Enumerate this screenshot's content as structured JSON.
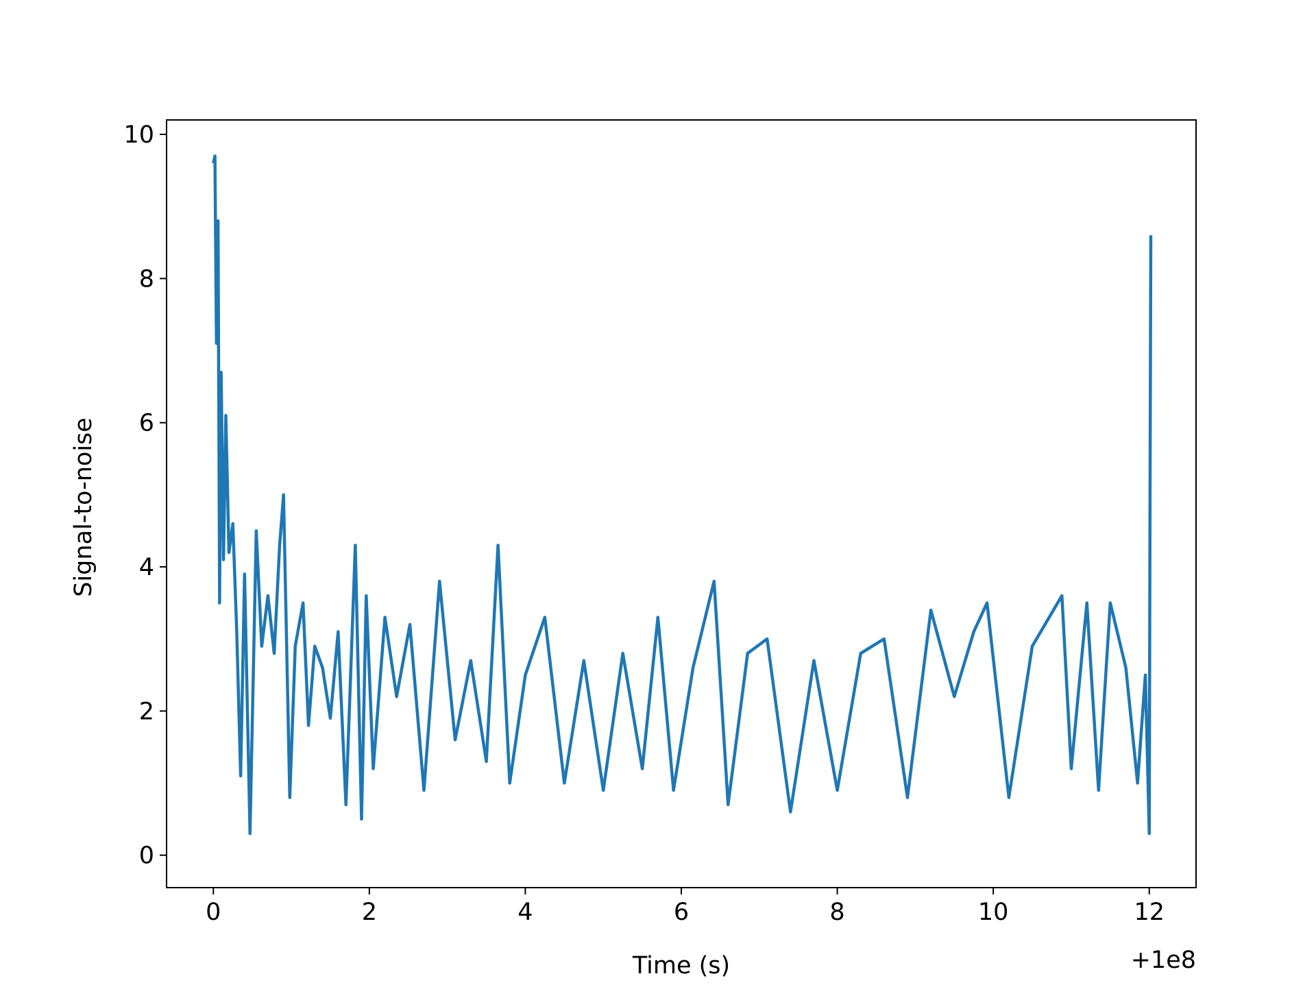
{
  "chart_data": {
    "type": "line",
    "title": "",
    "xlabel": "Time (s)",
    "ylabel": "Signal-to-noise",
    "x_offset_label": "+1e8",
    "xlim": [
      -0.6,
      12.6
    ],
    "ylim": [
      -0.45,
      10.2
    ],
    "xticks": [
      0,
      2,
      4,
      6,
      8,
      10,
      12
    ],
    "yticks": [
      0,
      2,
      4,
      6,
      8,
      10
    ],
    "xtick_labels": [
      "0",
      "2",
      "4",
      "6",
      "8",
      "10",
      "12"
    ],
    "ytick_labels": [
      "0",
      "2",
      "4",
      "6",
      "8",
      "10"
    ],
    "grid": false,
    "legend": "none",
    "line_color": "#1f77b4",
    "series": [
      {
        "x": [
          0.0,
          0.02,
          0.04,
          0.06,
          0.08,
          0.1,
          0.13,
          0.16,
          0.2,
          0.25,
          0.3,
          0.35,
          0.4,
          0.47,
          0.55,
          0.62,
          0.7,
          0.78,
          0.85,
          0.9,
          0.98,
          1.05,
          1.15,
          1.22,
          1.3,
          1.4,
          1.5,
          1.6,
          1.7,
          1.82,
          1.9,
          1.96,
          2.05,
          2.2,
          2.35,
          2.52,
          2.7,
          2.9,
          3.1,
          3.3,
          3.5,
          3.65,
          3.8,
          4.0,
          4.25,
          4.5,
          4.75,
          5.0,
          5.25,
          5.5,
          5.7,
          5.9,
          6.15,
          6.42,
          6.6,
          6.85,
          7.1,
          7.4,
          7.7,
          8.0,
          8.3,
          8.6,
          8.9,
          9.2,
          9.5,
          9.75,
          9.92,
          10.2,
          10.5,
          10.88,
          11.0,
          11.2,
          11.35,
          11.5,
          11.7,
          11.85,
          11.95,
          12.0,
          12.01,
          12.02
        ],
        "y": [
          9.6,
          9.7,
          7.1,
          8.8,
          3.5,
          6.7,
          4.1,
          6.1,
          4.2,
          4.6,
          3.1,
          1.1,
          3.9,
          0.3,
          4.5,
          2.9,
          3.6,
          2.8,
          4.3,
          5.0,
          0.8,
          2.9,
          3.5,
          1.8,
          2.9,
          2.6,
          1.9,
          3.1,
          0.7,
          4.3,
          0.5,
          3.6,
          1.2,
          3.3,
          2.2,
          3.2,
          0.9,
          3.8,
          1.6,
          2.7,
          1.3,
          4.3,
          1.0,
          2.5,
          3.3,
          1.0,
          2.7,
          0.9,
          2.8,
          1.2,
          3.3,
          0.9,
          2.6,
          3.8,
          0.7,
          2.8,
          3.0,
          0.6,
          2.7,
          0.9,
          2.8,
          3.0,
          0.8,
          3.4,
          2.2,
          3.1,
          3.5,
          0.8,
          2.9,
          3.6,
          1.2,
          3.5,
          0.9,
          3.5,
          2.6,
          1.0,
          2.5,
          0.3,
          5.0,
          8.6
        ]
      }
    ]
  }
}
